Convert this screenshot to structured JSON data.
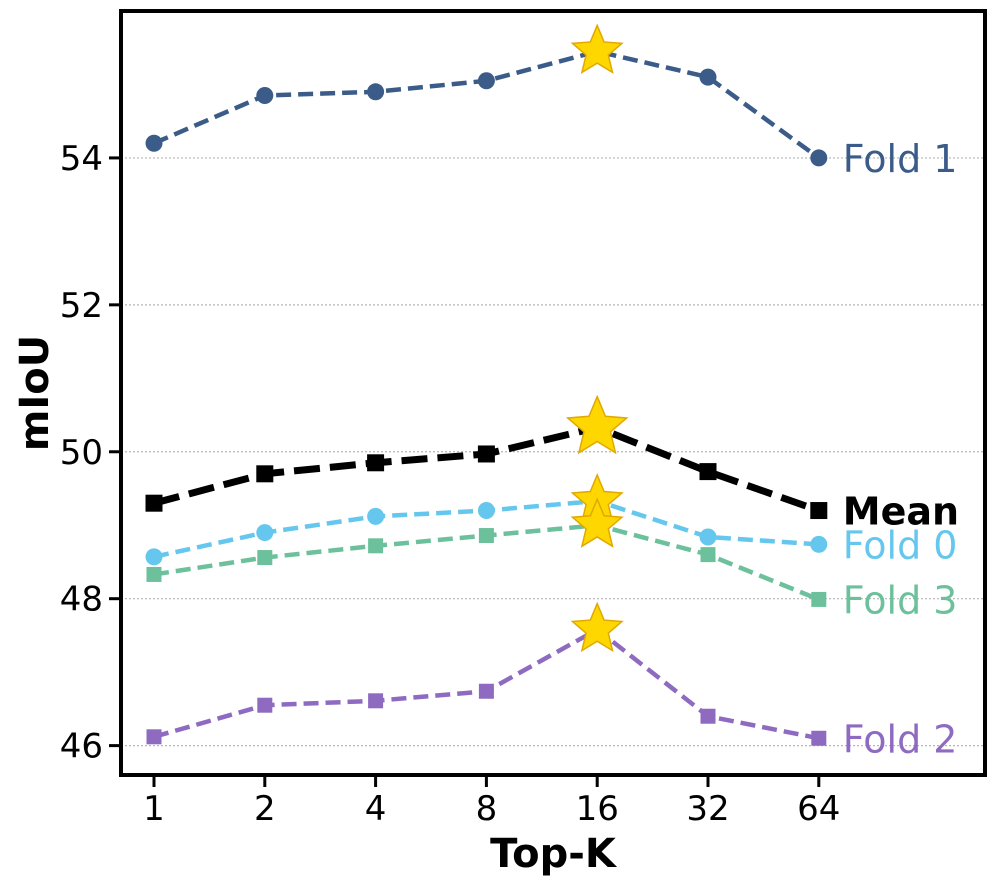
{
  "chart_data": {
    "type": "line",
    "title": "",
    "xlabel": "Top-K",
    "ylabel": "mIoU",
    "categories": [
      "1",
      "2",
      "4",
      "8",
      "16",
      "32",
      "64"
    ],
    "ylim": [
      45.6,
      56.0
    ],
    "yticks": [
      46,
      48,
      50,
      52,
      54
    ],
    "grid": "horizontal-dotted",
    "highlight": {
      "category": "16",
      "marker": "star",
      "color": "#FFD700"
    },
    "series": [
      {
        "name": "Fold 1",
        "label": "Fold 1",
        "color": "#3B5B88",
        "marker": "circle",
        "bold": false,
        "values": [
          54.2,
          54.85,
          54.9,
          55.05,
          55.45,
          55.1,
          54.0
        ]
      },
      {
        "name": "Mean",
        "label": "Mean",
        "color": "#000000",
        "marker": "square",
        "bold": true,
        "values": [
          49.3,
          49.7,
          49.85,
          49.97,
          50.33,
          49.73,
          49.2
        ]
      },
      {
        "name": "Fold 0",
        "label": "Fold 0",
        "color": "#66C7EE",
        "marker": "circle",
        "bold": false,
        "values": [
          48.57,
          48.9,
          49.12,
          49.2,
          49.33,
          48.84,
          48.74
        ]
      },
      {
        "name": "Fold 3",
        "label": "Fold 3",
        "color": "#6CC19C",
        "marker": "square",
        "bold": false,
        "values": [
          48.33,
          48.56,
          48.72,
          48.86,
          49.0,
          48.6,
          47.99
        ]
      },
      {
        "name": "Fold 2",
        "label": "Fold 2",
        "color": "#8E6BC0",
        "marker": "square",
        "bold": false,
        "values": [
          46.12,
          46.55,
          46.61,
          46.74,
          47.58,
          46.4,
          46.1
        ]
      }
    ]
  }
}
